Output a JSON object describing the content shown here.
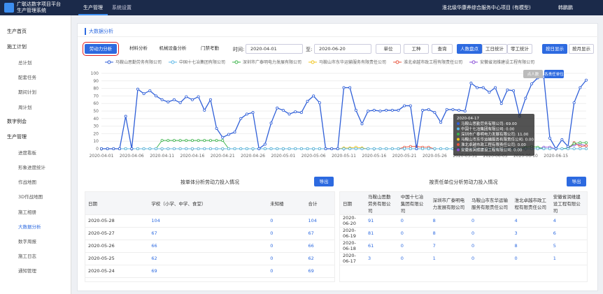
{
  "header": {
    "logo_line1": "广联达数字项目平台",
    "logo_line2": "生产管理系统",
    "nav": [
      "生产管理",
      "系统设置"
    ],
    "project": "淮北级华康养综合服务中心项目 (有模型)",
    "user": "韩鹏鹏"
  },
  "sidebar": [
    {
      "label": "生产首页"
    },
    {
      "label": "施工计划",
      "children": [
        "总计划",
        "配套任务",
        "期间计划",
        "周计划"
      ]
    },
    {
      "label": "数字例会"
    },
    {
      "label": "生产管理",
      "children": [
        "进度看板",
        "形象进度统计",
        "作战地图",
        "3D作战地图",
        "施工相册",
        "大数据分析",
        "数字周报",
        "施工日志",
        "通知管理"
      ]
    }
  ],
  "page_title": "大数据分析",
  "toolbar": {
    "tabs": [
      "劳动力分析",
      "材料分析",
      "机械设备分析",
      "门禁考勤"
    ],
    "time_label": "时间:",
    "start": "2020-04-01",
    "to_label": "至:",
    "end": "2020-06-20",
    "unit": "单位",
    "trade": "工种",
    "query": "查询",
    "stats": [
      "人数盘点",
      "工日统计",
      "零工统计"
    ],
    "display": [
      "按日显示",
      "按月显示"
    ]
  },
  "chart_data": {
    "type": "line",
    "ylim": [
      0,
      100
    ],
    "yticks": [
      0,
      10,
      20,
      30,
      40,
      50,
      60,
      70,
      80,
      90,
      100
    ],
    "grid": true,
    "buttons": [
      "点人数",
      "各责任单位"
    ],
    "categories": [
      "2020-04-01",
      null,
      null,
      null,
      null,
      "2020-04-06",
      null,
      null,
      null,
      null,
      "2020-04-11",
      null,
      null,
      null,
      null,
      "2020-04-16",
      null,
      null,
      null,
      null,
      "2020-04-21",
      null,
      null,
      null,
      null,
      "2020-04-26",
      null,
      null,
      null,
      null,
      "2020-05-01",
      null,
      null,
      null,
      null,
      "2020-05-06",
      null,
      null,
      null,
      null,
      "2020-05-11",
      null,
      null,
      null,
      null,
      "2020-05-16",
      null,
      null,
      null,
      null,
      "2020-05-21",
      null,
      null,
      null,
      null,
      "2020-05-26",
      null,
      null,
      null,
      null,
      "2020-05-31",
      null,
      null,
      null,
      null,
      "2020-06-05",
      null,
      null,
      null,
      null,
      "2020-06-10",
      null,
      null,
      null,
      null,
      "2020-06-15",
      null,
      null,
      null,
      null,
      null
    ],
    "series": [
      {
        "name": "马鞍山思勤劳务有限公司",
        "color": "#2f5fd8",
        "values": [
          0,
          0,
          0,
          0,
          43,
          0,
          79,
          73,
          77,
          70,
          65,
          62,
          65,
          61,
          69,
          65,
          69,
          51,
          65,
          27,
          15,
          19,
          22,
          40,
          46,
          48,
          0,
          6,
          34,
          54,
          51,
          46,
          49,
          48,
          63,
          70,
          61,
          0,
          0,
          0,
          81,
          81,
          51,
          33,
          50,
          51,
          50,
          51,
          51,
          51,
          57,
          57,
          0,
          51,
          52,
          48,
          35,
          52,
          52,
          51,
          50,
          87,
          81,
          81,
          75,
          81,
          60,
          78,
          77,
          43,
          67,
          86,
          94,
          95,
          14,
          0,
          12,
          3,
          61,
          81,
          91
        ]
      },
      {
        "name": "中国十七冶集团有限公司",
        "color": "#5cb8e8",
        "values": [
          0,
          0,
          0,
          0,
          0,
          0,
          0,
          0,
          0,
          0,
          0,
          0,
          0,
          0,
          0,
          0,
          0,
          0,
          0,
          0,
          0,
          0,
          0,
          0,
          0,
          0,
          0,
          0,
          0,
          0,
          0,
          0,
          0,
          0,
          0,
          0,
          0,
          0,
          0,
          0,
          0,
          0,
          0,
          0,
          0,
          0,
          0,
          0,
          0,
          0,
          0,
          0,
          0,
          0,
          0,
          0,
          0,
          0,
          0,
          0,
          0,
          0,
          0,
          0,
          0,
          0,
          0,
          0,
          0,
          0,
          0,
          0,
          0,
          0,
          0,
          0,
          0,
          0,
          0,
          0,
          0
        ]
      },
      {
        "name": "深圳市广泰明电力发展有限公司",
        "color": "#3cb44b",
        "values": [
          0,
          0,
          0,
          0,
          0,
          0,
          0,
          0,
          0,
          0,
          11,
          11,
          11,
          11,
          11,
          11,
          11,
          11,
          11,
          11,
          11,
          0,
          0,
          0,
          0,
          0,
          0,
          0,
          0,
          0,
          0,
          0,
          0,
          0,
          0,
          0,
          0,
          0,
          0,
          0,
          0,
          0,
          0,
          0,
          0,
          0,
          0,
          0,
          0,
          0,
          0,
          0,
          0,
          0,
          0,
          0,
          0,
          0,
          0,
          0,
          0,
          0,
          0,
          0,
          0,
          0,
          0,
          0,
          0,
          0,
          2,
          3,
          2,
          0,
          0,
          0,
          0,
          1,
          7,
          8,
          8
        ]
      },
      {
        "name": "马鞍山市东华运输服务有限责任公司",
        "color": "#f0c419",
        "values": [
          0,
          0,
          0,
          0,
          0,
          0,
          0,
          0,
          0,
          0,
          0,
          0,
          0,
          0,
          0,
          0,
          0,
          0,
          0,
          0,
          0,
          0,
          0,
          0,
          0,
          0,
          0,
          0,
          0,
          0,
          0,
          0,
          0,
          0,
          0,
          0,
          0,
          0,
          0,
          0,
          1,
          1,
          2,
          1,
          0,
          0,
          0,
          0,
          0,
          0,
          0,
          0,
          0,
          0,
          0,
          0,
          0,
          0,
          0,
          0,
          0,
          0,
          0,
          0,
          0,
          0,
          0,
          0,
          0,
          0,
          0,
          0,
          0,
          0,
          0,
          0,
          0,
          0,
          0,
          0,
          0
        ]
      },
      {
        "name": "淮北卓越市政工程有限责任公司",
        "color": "#e8543e",
        "values": [
          0,
          0,
          0,
          0,
          0,
          0,
          0,
          0,
          0,
          0,
          0,
          0,
          0,
          0,
          0,
          0,
          0,
          0,
          0,
          0,
          0,
          0,
          0,
          0,
          0,
          0,
          0,
          0,
          0,
          0,
          0,
          0,
          0,
          0,
          0,
          0,
          0,
          0,
          0,
          0,
          0,
          0,
          0,
          0,
          0,
          0,
          0,
          0,
          0,
          0,
          2,
          3,
          3,
          2,
          2,
          0,
          0,
          0,
          0,
          0,
          0,
          0,
          0,
          0,
          0,
          0,
          0,
          0,
          0,
          0,
          0,
          0,
          0,
          0,
          0,
          0,
          0,
          0,
          8,
          3,
          4
        ]
      },
      {
        "name": "安徽省润维建设工程有限公司",
        "color": "#8a4fd8",
        "values": [
          0,
          0,
          0,
          0,
          0,
          0,
          0,
          0,
          0,
          0,
          0,
          0,
          0,
          0,
          0,
          0,
          0,
          0,
          0,
          0,
          0,
          0,
          0,
          0,
          0,
          0,
          0,
          0,
          0,
          0,
          0,
          0,
          0,
          0,
          0,
          0,
          0,
          0,
          0,
          0,
          0,
          0,
          0,
          0,
          0,
          0,
          0,
          0,
          0,
          0,
          0,
          0,
          0,
          0,
          0,
          0,
          0,
          0,
          0,
          0,
          0,
          0,
          0,
          0,
          0,
          0,
          0,
          0,
          0,
          0,
          0,
          0,
          0,
          2,
          2,
          0,
          0,
          1,
          5,
          6,
          4
        ]
      }
    ],
    "tooltip": {
      "title": "2020-04-17",
      "rows": [
        "马鞍山思勤劳务有限公司: 69.00",
        "中国十七冶集团有限公司: 0.00",
        "深圳市广泰明电力发展有限公司: 11.00",
        "马鞍山市东华运输服务有限责任公司: 0.00",
        "淮北卓越市政工程有限责任公司: 0.00",
        "安徽省润维建设工程有限公司: 0.00"
      ]
    }
  },
  "tables": [
    {
      "title": "按单体分析劳动力投入情况",
      "export": "导出",
      "columns": [
        "日期",
        "学校（小学、中学、食堂）",
        "未知楼",
        "合计"
      ],
      "rows": [
        [
          "2020-05-28",
          104,
          0,
          104
        ],
        [
          "2020-05-27",
          67,
          0,
          67
        ],
        [
          "2020-05-26",
          66,
          0,
          66
        ],
        [
          "2020-05-25",
          62,
          0,
          62
        ],
        [
          "2020-05-24",
          69,
          0,
          69
        ]
      ]
    },
    {
      "title": "按责任单位分析劳动力投入情况",
      "export": "导出",
      "columns": [
        "日期",
        "马鞍山思勤劳务有限公司",
        "中国十七冶集团有限公司",
        "深圳市广泰明电力发展有限公司",
        "马鞍山市东华运输服务有限责任公司",
        "淮北卓越市政工程有限责任公司",
        "安徽省润维建设工程有限公司"
      ],
      "rows": [
        [
          "2020-06-20",
          91,
          0,
          8,
          0,
          4,
          4
        ],
        [
          "2020-06-19",
          81,
          0,
          8,
          0,
          3,
          6
        ],
        [
          "2020-06-18",
          61,
          0,
          7,
          0,
          8,
          5
        ],
        [
          "2020-06-17",
          3,
          0,
          1,
          0,
          0,
          1
        ]
      ]
    }
  ]
}
